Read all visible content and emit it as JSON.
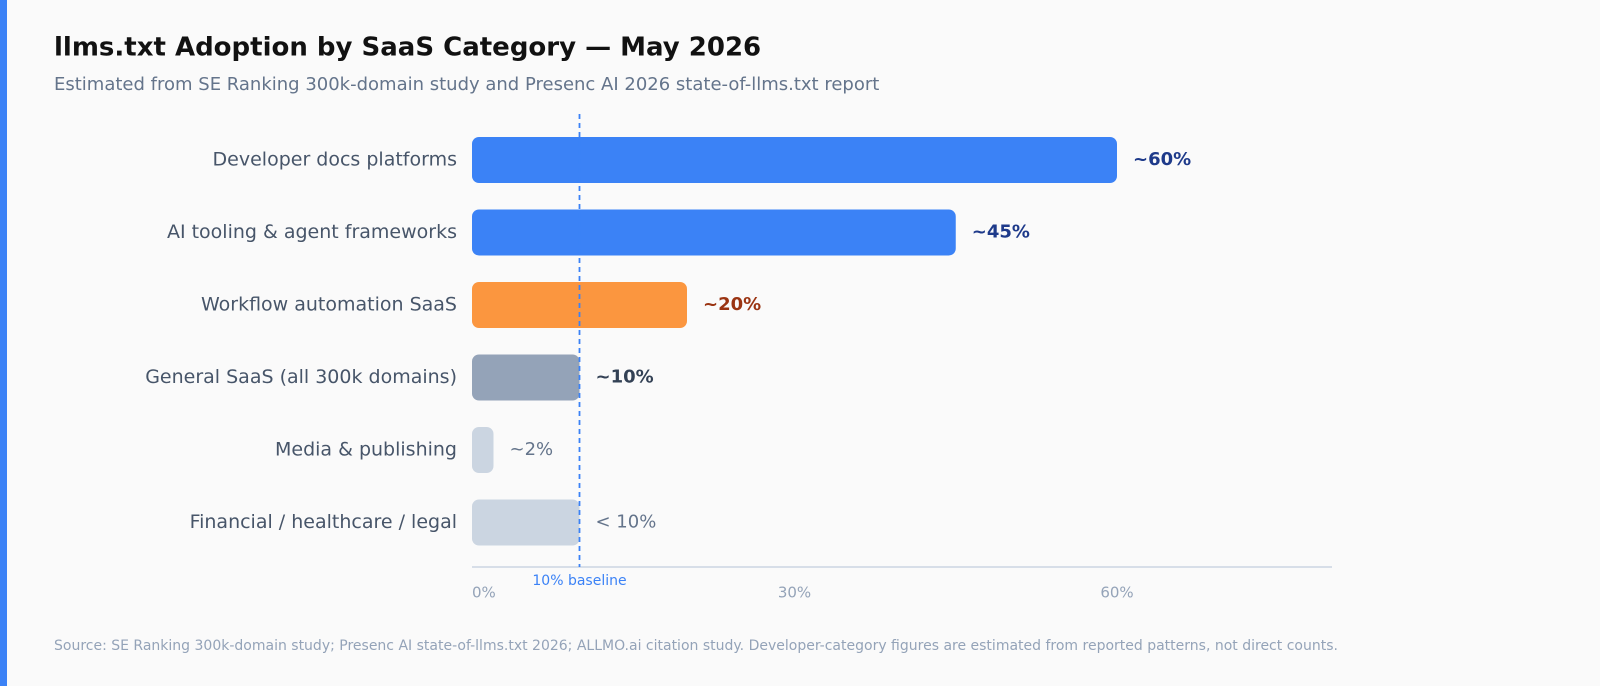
{
  "chart_data": {
    "type": "bar",
    "orientation": "horizontal",
    "title": "llms.txt Adoption by SaaS Category — May 2026",
    "subtitle": "Estimated from SE Ranking 300k-domain study and Presenc AI 2026 state-of-llms.txt report",
    "categories": [
      "Developer docs platforms",
      "AI tooling & agent frameworks",
      "Workflow automation SaaS",
      "General SaaS (all 300k domains)",
      "Media & publishing",
      "Financial / healthcare / legal"
    ],
    "values": [
      60,
      45,
      20,
      10,
      2,
      10
    ],
    "value_labels": [
      "~60%",
      "~45%",
      "~20%",
      "~10%",
      "~2%",
      "< 10%"
    ],
    "colors": [
      "#3b82f6",
      "#3b82f6",
      "#fb963f",
      "#94a3b8",
      "#cbd5e1",
      "#cbd5e1"
    ],
    "label_colors": [
      "#1e3a8a",
      "#1e3a8a",
      "#9a3412",
      "#334155",
      "#64748b",
      "#64748b"
    ],
    "xlim": [
      0,
      80
    ],
    "xticks": [
      {
        "value": 0,
        "label": "0%"
      },
      {
        "value": 30,
        "label": "30%"
      },
      {
        "value": 60,
        "label": "60%"
      }
    ],
    "reference_line": {
      "value": 10,
      "label": "10% baseline",
      "color": "#3b82f6"
    },
    "source": "Source: SE Ranking 300k-domain study; Presenc AI state-of-llms.txt 2026; ALLMO.ai citation study. Developer-category figures are estimated from reported patterns, not direct counts."
  }
}
